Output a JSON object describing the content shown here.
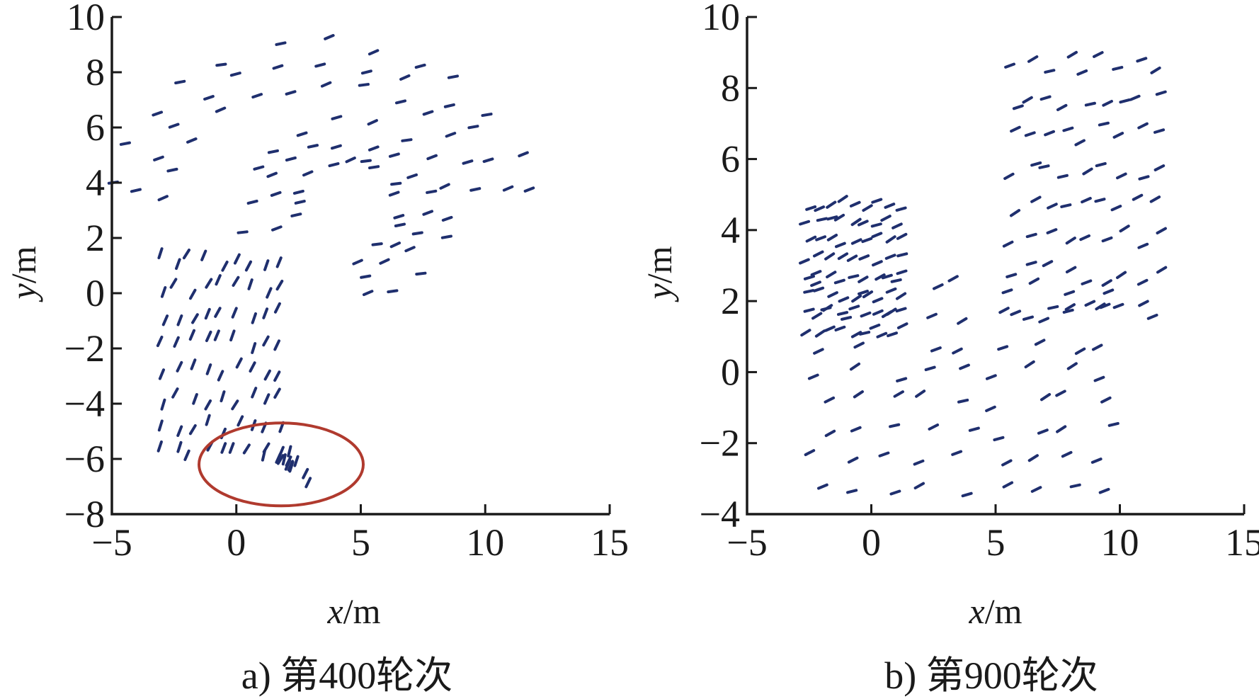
{
  "chart_data": [
    {
      "type": "scatter",
      "subtype": "quiver",
      "caption": "a) 第400轮次",
      "xlabel_var": "x",
      "xlabel_unit": "/m",
      "ylabel_var": "y",
      "ylabel_unit": "/m",
      "xlim": [
        -5,
        15
      ],
      "ylim": [
        -8,
        10
      ],
      "xticks": [
        "−5",
        "0",
        "5",
        "10",
        "15"
      ],
      "yticks": [
        "−8",
        "−6",
        "−4",
        "−2",
        "0",
        "2",
        "4",
        "6",
        "8",
        "10"
      ],
      "grid": false,
      "arrow_color": "#1f2f6e",
      "highlight": {
        "shape": "ellipse",
        "cx": 1.8,
        "cy": -6.2,
        "rx": 3.3,
        "ry": 1.5,
        "color": "#b03a2e"
      },
      "groups": [
        {
          "name": "outer-arc",
          "center": [
            3.5,
            2.7
          ],
          "radius": [
            6.5,
            7.5,
            8.5
          ],
          "angle_from": 10,
          "angle_to": 170,
          "steps": 12
        },
        {
          "name": "inner-arc",
          "center": [
            4.5,
            3.0
          ],
          "radius": [
            2.2,
            3.2,
            4.2
          ],
          "angle_from": -80,
          "angle_to": 190,
          "steps": 14
        },
        {
          "name": "left-tail",
          "x_from": -3.2,
          "x_to": 2.2,
          "y_from": 1.5,
          "y_to": -6.5
        },
        {
          "name": "highlight-cluster",
          "center": [
            1.6,
            -6.3
          ],
          "span_x": 2.6,
          "span_y": 1.2
        }
      ]
    },
    {
      "type": "scatter",
      "subtype": "quiver",
      "caption": "b) 第900轮次",
      "xlabel_var": "x",
      "xlabel_unit": "/m",
      "ylabel_var": "y",
      "ylabel_unit": "/m",
      "xlim": [
        -5,
        15
      ],
      "ylim": [
        -4,
        10
      ],
      "xticks": [
        "−5",
        "0",
        "5",
        "10",
        "15"
      ],
      "yticks": [
        "−4",
        "−2",
        "0",
        "2",
        "4",
        "6",
        "8",
        "10"
      ],
      "grid": false,
      "arrow_color": "#1f2f6e",
      "groups": [
        {
          "name": "u-bottom",
          "x_from": -2.5,
          "x_to": 10.5,
          "y_from": -3.5,
          "y_to": 3.0
        },
        {
          "name": "u-right-arm",
          "x_from": 5.5,
          "x_to": 12.0,
          "y_from": 1.5,
          "y_to": 9.4
        },
        {
          "name": "u-left-tip",
          "x_from": -2.7,
          "x_to": 1.5,
          "y_from": 1.0,
          "y_to": 5.1
        }
      ]
    }
  ]
}
